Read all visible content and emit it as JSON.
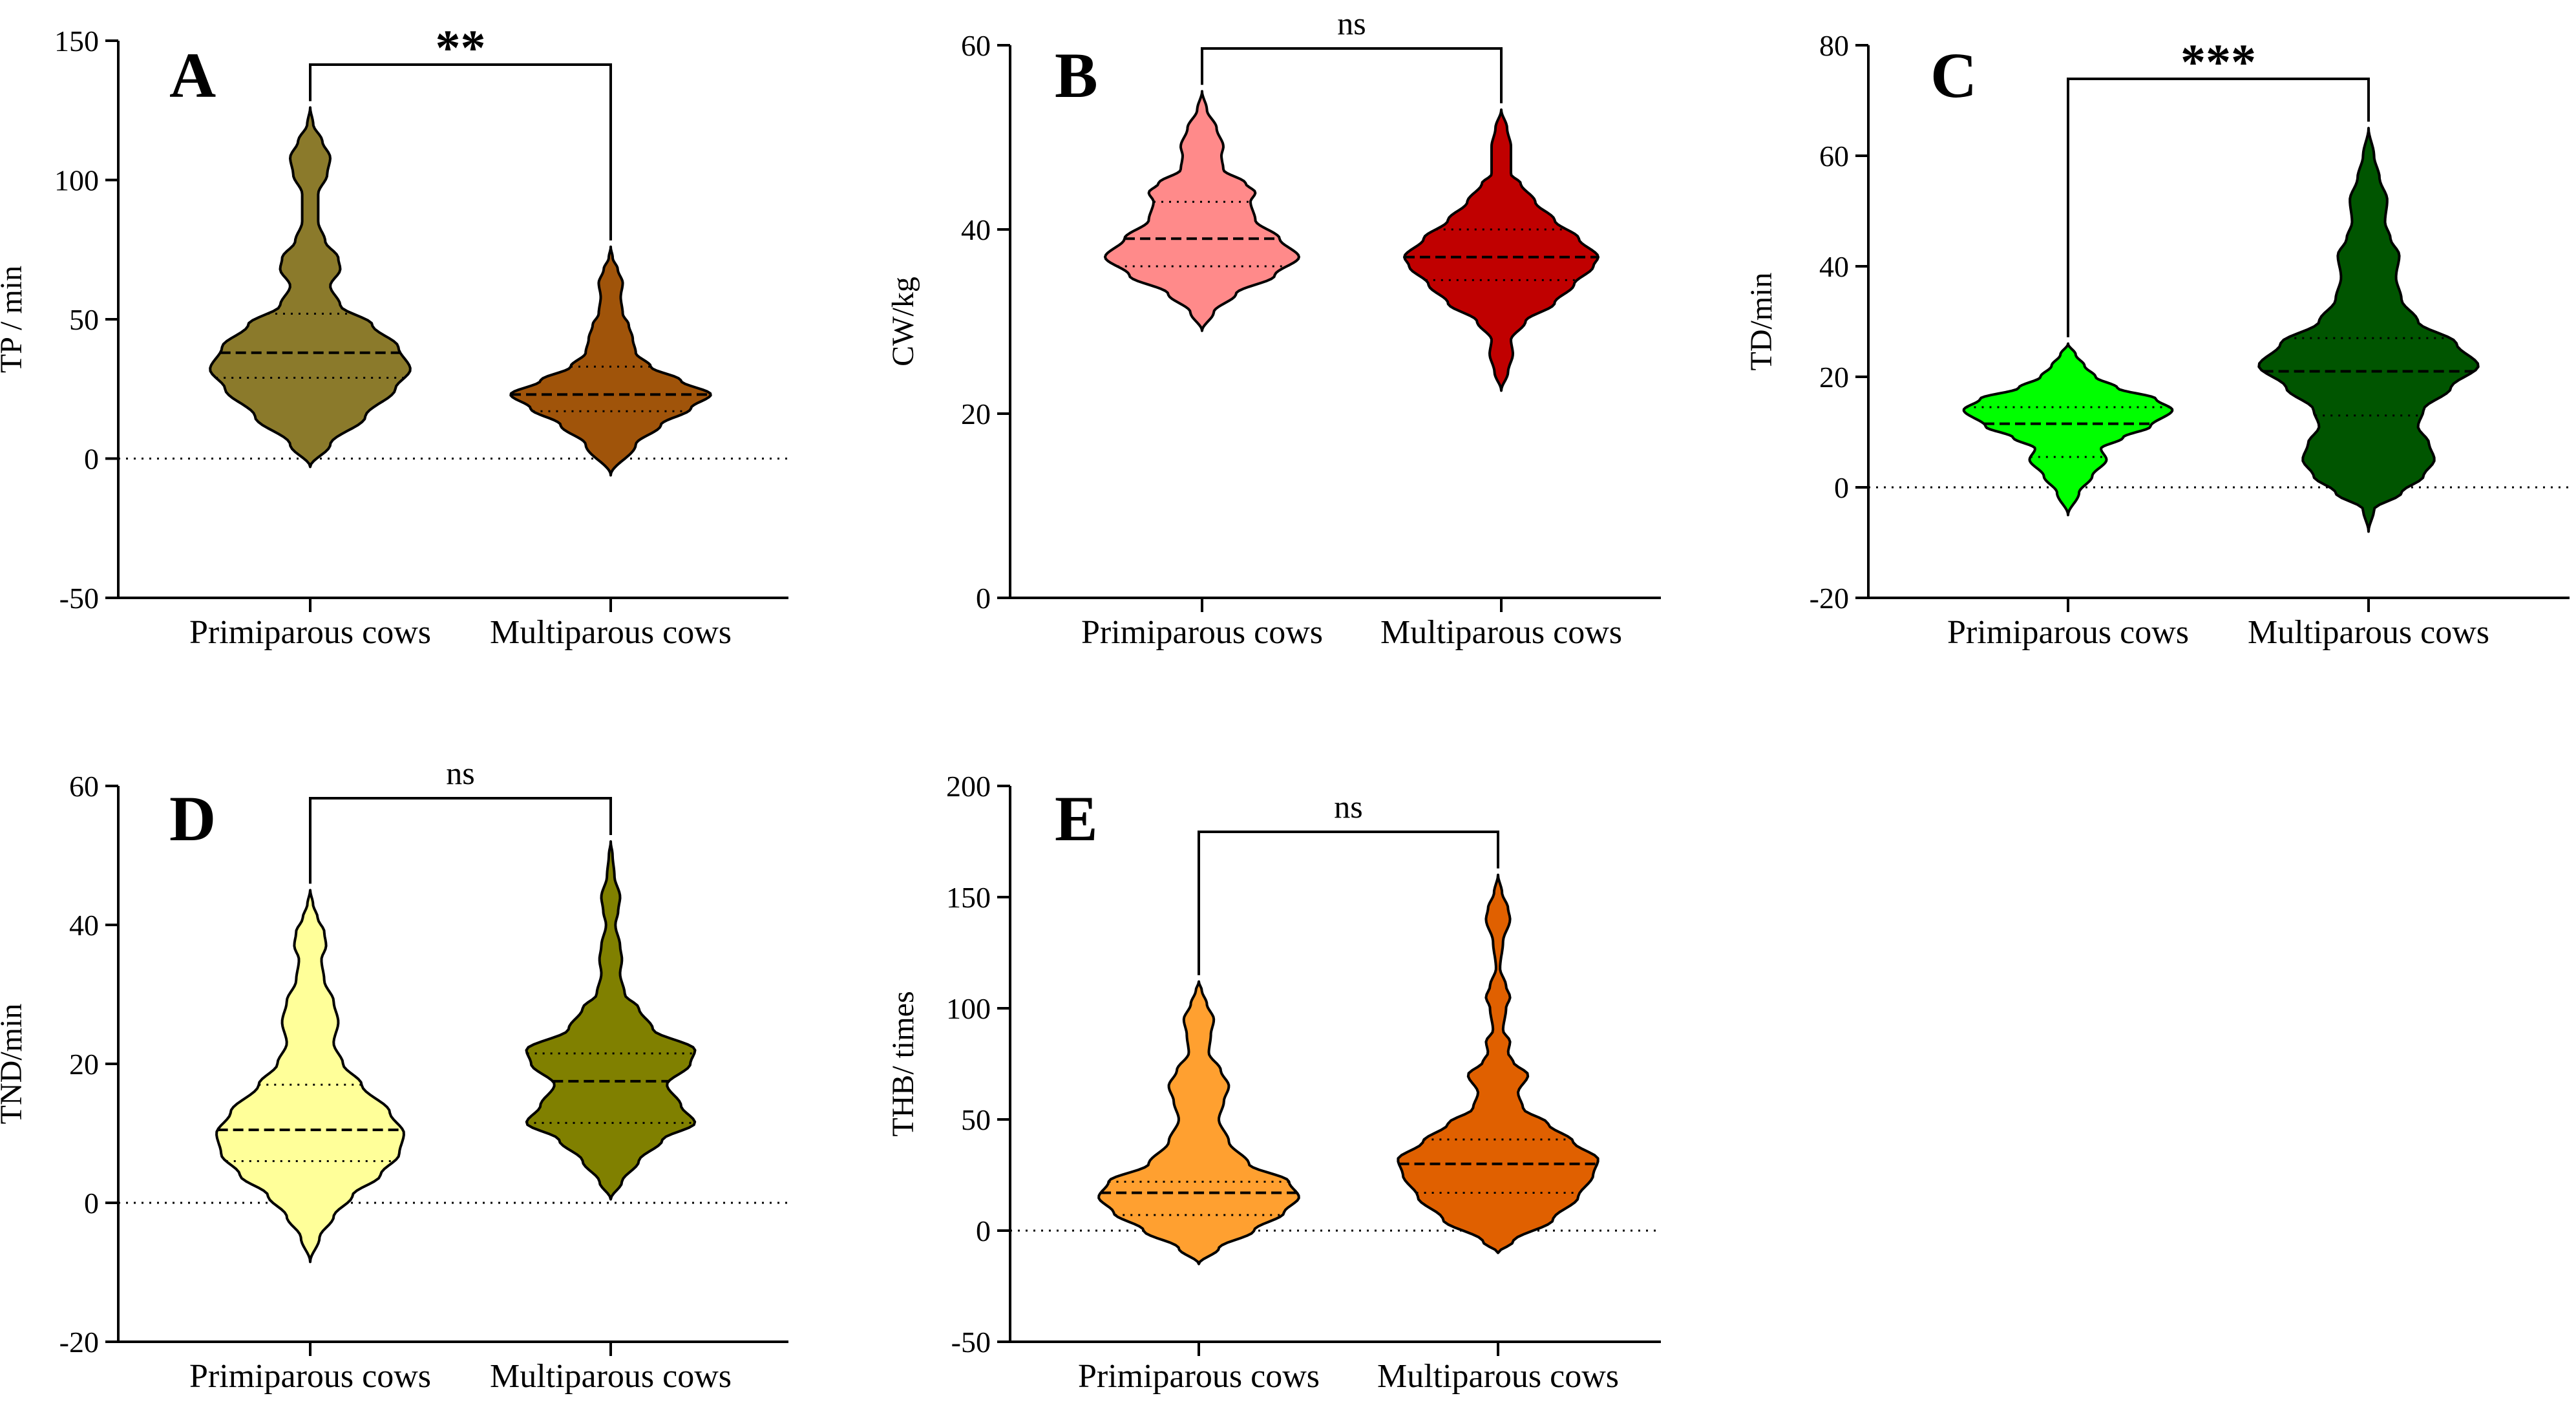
{
  "chart_data": [
    {
      "type": "violin",
      "panel": "A",
      "ylabel": "TP / min",
      "ylim": [
        -50,
        150
      ],
      "yticks": [
        -50,
        0,
        50,
        100,
        150
      ],
      "categories": [
        "Primiparous cows",
        "Multiparous cows"
      ],
      "significance": "**",
      "series": [
        {
          "name": "Primiparous cows",
          "color": "#8B7A2B",
          "median": 38,
          "q1": 29,
          "q3": 52,
          "profile": [
            [
              -3,
              0
            ],
            [
              5,
              0.2
            ],
            [
              15,
              0.55
            ],
            [
              25,
              0.85
            ],
            [
              32,
              1.0
            ],
            [
              40,
              0.88
            ],
            [
              48,
              0.62
            ],
            [
              55,
              0.3
            ],
            [
              62,
              0.2
            ],
            [
              68,
              0.3
            ],
            [
              72,
              0.28
            ],
            [
              78,
              0.15
            ],
            [
              85,
              0.08
            ],
            [
              95,
              0.08
            ],
            [
              102,
              0.17
            ],
            [
              108,
              0.2
            ],
            [
              114,
              0.12
            ],
            [
              120,
              0.03
            ],
            [
              126,
              0
            ]
          ]
        },
        {
          "name": "Multiparous cows",
          "color": "#A0540A",
          "median": 23,
          "q1": 17,
          "q3": 33,
          "profile": [
            [
              -6,
              0
            ],
            [
              5,
              0.25
            ],
            [
              12,
              0.5
            ],
            [
              18,
              0.8
            ],
            [
              23,
              1.0
            ],
            [
              28,
              0.7
            ],
            [
              33,
              0.4
            ],
            [
              38,
              0.25
            ],
            [
              43,
              0.22
            ],
            [
              48,
              0.18
            ],
            [
              52,
              0.12
            ],
            [
              58,
              0.1
            ],
            [
              63,
              0.12
            ],
            [
              68,
              0.07
            ],
            [
              72,
              0.02
            ],
            [
              76,
              0
            ]
          ]
        }
      ]
    },
    {
      "type": "violin",
      "panel": "B",
      "ylabel": "CW/kg",
      "ylim": [
        0,
        60
      ],
      "yticks": [
        0,
        20,
        40,
        60
      ],
      "categories": [
        "Primiparous cows",
        "Multiparous cows"
      ],
      "significance": "ns",
      "series": [
        {
          "name": "Primiparous cows",
          "color": "#FF8A8A",
          "median": 39,
          "q1": 36,
          "q3": 43,
          "profile": [
            [
              29,
              0
            ],
            [
              31,
              0.12
            ],
            [
              33,
              0.35
            ],
            [
              35,
              0.75
            ],
            [
              37,
              1.0
            ],
            [
              39,
              0.8
            ],
            [
              41,
              0.55
            ],
            [
              43,
              0.5
            ],
            [
              44,
              0.55
            ],
            [
              45,
              0.45
            ],
            [
              46.5,
              0.22
            ],
            [
              48,
              0.2
            ],
            [
              49,
              0.22
            ],
            [
              51,
              0.15
            ],
            [
              53,
              0.05
            ],
            [
              55,
              0
            ]
          ]
        },
        {
          "name": "Multiparous cows",
          "color": "#C00000",
          "median": 37,
          "q1": 34.5,
          "q3": 40,
          "profile": [
            [
              22.5,
              0
            ],
            [
              24.5,
              0.07
            ],
            [
              26.5,
              0.12
            ],
            [
              28,
              0.1
            ],
            [
              30,
              0.25
            ],
            [
              32,
              0.55
            ],
            [
              34,
              0.75
            ],
            [
              36,
              0.95
            ],
            [
              37,
              1.0
            ],
            [
              39,
              0.8
            ],
            [
              41,
              0.55
            ],
            [
              43,
              0.35
            ],
            [
              45,
              0.2
            ],
            [
              46,
              0.1
            ],
            [
              47.5,
              0.1
            ],
            [
              49,
              0.1
            ],
            [
              51,
              0.06
            ],
            [
              53,
              0
            ]
          ]
        }
      ]
    },
    {
      "type": "violin",
      "panel": "C",
      "ylabel": "TD/min",
      "ylim": [
        -20,
        80
      ],
      "yticks": [
        -20,
        0,
        20,
        40,
        60,
        80
      ],
      "categories": [
        "Primiparous cows",
        "Multiparous cows"
      ],
      "significance": "***",
      "series": [
        {
          "name": "Primiparous cows",
          "color": "#00FF00",
          "median": 11.5,
          "q1": 5.5,
          "q3": 14.5,
          "profile": [
            [
              -5,
              0
            ],
            [
              -1,
              0.1
            ],
            [
              2,
              0.22
            ],
            [
              5,
              0.35
            ],
            [
              7,
              0.3
            ],
            [
              9,
              0.5
            ],
            [
              11,
              0.75
            ],
            [
              14,
              0.95
            ],
            [
              16,
              0.8
            ],
            [
              18,
              0.45
            ],
            [
              20,
              0.25
            ],
            [
              22,
              0.15
            ],
            [
              24,
              0.07
            ],
            [
              26,
              0
            ]
          ]
        },
        {
          "name": "Multiparous cows",
          "color": "#005500",
          "median": 21,
          "q1": 13,
          "q3": 27,
          "profile": [
            [
              -8,
              0
            ],
            [
              -4,
              0.05
            ],
            [
              -1,
              0.3
            ],
            [
              2,
              0.5
            ],
            [
              5,
              0.6
            ],
            [
              8,
              0.55
            ],
            [
              11,
              0.45
            ],
            [
              14,
              0.5
            ],
            [
              18,
              0.75
            ],
            [
              22,
              1.0
            ],
            [
              26,
              0.8
            ],
            [
              30,
              0.45
            ],
            [
              34,
              0.3
            ],
            [
              38,
              0.25
            ],
            [
              42,
              0.28
            ],
            [
              45,
              0.2
            ],
            [
              48,
              0.15
            ],
            [
              52,
              0.17
            ],
            [
              56,
              0.1
            ],
            [
              60,
              0.05
            ],
            [
              65,
              0
            ]
          ]
        }
      ]
    },
    {
      "type": "violin",
      "panel": "D",
      "ylabel": "TND/min",
      "ylim": [
        -20,
        60
      ],
      "yticks": [
        -20,
        0,
        20,
        40,
        60
      ],
      "categories": [
        "Primiparous cows",
        "Multiparous cows"
      ],
      "significance": "ns",
      "series": [
        {
          "name": "Primiparous cows",
          "color": "#FFFF99",
          "median": 10.5,
          "q1": 6,
          "q3": 17,
          "profile": [
            [
              -8.5,
              0
            ],
            [
              -5,
              0.1
            ],
            [
              -2,
              0.25
            ],
            [
              1,
              0.45
            ],
            [
              4,
              0.75
            ],
            [
              7,
              0.95
            ],
            [
              10,
              1.0
            ],
            [
              13,
              0.85
            ],
            [
              17,
              0.55
            ],
            [
              20,
              0.35
            ],
            [
              23,
              0.25
            ],
            [
              26,
              0.3
            ],
            [
              29,
              0.25
            ],
            [
              32,
              0.15
            ],
            [
              35,
              0.12
            ],
            [
              37,
              0.17
            ],
            [
              39,
              0.15
            ],
            [
              41,
              0.08
            ],
            [
              43,
              0.03
            ],
            [
              45,
              0
            ]
          ]
        },
        {
          "name": "Multiparous cows",
          "color": "#808000",
          "median": 17.5,
          "q1": 11.5,
          "q3": 21.5,
          "profile": [
            [
              0.5,
              0
            ],
            [
              3,
              0.12
            ],
            [
              6,
              0.3
            ],
            [
              9,
              0.55
            ],
            [
              11.5,
              0.9
            ],
            [
              14,
              0.75
            ],
            [
              17,
              0.6
            ],
            [
              20,
              0.85
            ],
            [
              22,
              0.9
            ],
            [
              25,
              0.45
            ],
            [
              28,
              0.3
            ],
            [
              30,
              0.15
            ],
            [
              33,
              0.1
            ],
            [
              35,
              0.12
            ],
            [
              37,
              0.1
            ],
            [
              40,
              0.05
            ],
            [
              42,
              0.08
            ],
            [
              44,
              0.1
            ],
            [
              47,
              0.04
            ],
            [
              50,
              0.02
            ],
            [
              52,
              0
            ]
          ]
        }
      ]
    },
    {
      "type": "violin",
      "panel": "E",
      "ylabel": "THB/ times",
      "ylim": [
        -50,
        200
      ],
      "yticks": [
        -50,
        0,
        50,
        100,
        150,
        200
      ],
      "categories": [
        "Primiparous cows",
        "Multiparous cows"
      ],
      "significance": "ns",
      "series": [
        {
          "name": "Primiparous cows",
          "color": "#FFA030",
          "median": 17,
          "q1": 7,
          "q3": 22,
          "profile": [
            [
              -15,
              0
            ],
            [
              -8,
              0.2
            ],
            [
              0,
              0.55
            ],
            [
              8,
              0.85
            ],
            [
              15,
              1.0
            ],
            [
              22,
              0.9
            ],
            [
              30,
              0.5
            ],
            [
              40,
              0.3
            ],
            [
              50,
              0.2
            ],
            [
              58,
              0.25
            ],
            [
              65,
              0.3
            ],
            [
              72,
              0.22
            ],
            [
              80,
              0.1
            ],
            [
              88,
              0.12
            ],
            [
              95,
              0.15
            ],
            [
              102,
              0.08
            ],
            [
              108,
              0.03
            ],
            [
              112,
              0
            ]
          ]
        },
        {
          "name": "Multiparous cows",
          "color": "#E06000",
          "median": 30,
          "q1": 17,
          "q3": 41,
          "profile": [
            [
              -10,
              0
            ],
            [
              -5,
              0.15
            ],
            [
              5,
              0.55
            ],
            [
              15,
              0.8
            ],
            [
              25,
              0.95
            ],
            [
              32,
              1.0
            ],
            [
              40,
              0.75
            ],
            [
              48,
              0.5
            ],
            [
              55,
              0.25
            ],
            [
              62,
              0.2
            ],
            [
              70,
              0.3
            ],
            [
              76,
              0.15
            ],
            [
              80,
              0.1
            ],
            [
              85,
              0.12
            ],
            [
              90,
              0.05
            ],
            [
              100,
              0.08
            ],
            [
              105,
              0.12
            ],
            [
              110,
              0.08
            ],
            [
              118,
              0.02
            ],
            [
              130,
              0.05
            ],
            [
              140,
              0.12
            ],
            [
              145,
              0.1
            ],
            [
              152,
              0.04
            ],
            [
              160,
              0
            ]
          ]
        }
      ]
    }
  ]
}
